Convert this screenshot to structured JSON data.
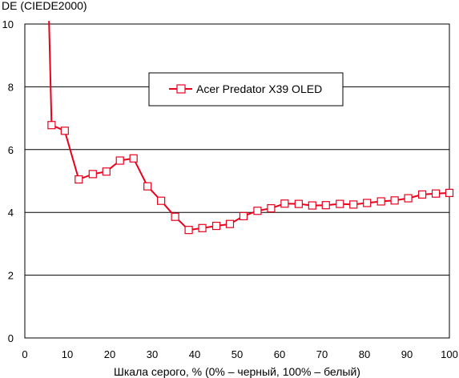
{
  "chart_data": {
    "type": "line",
    "title": "",
    "ylabel": "DE (CIEDE2000)",
    "xlabel": "Шкала серого, % (0% – черный, 100% – белый)",
    "xlim": [
      0,
      100
    ],
    "ylim": [
      0,
      10
    ],
    "x_ticks": [
      "0",
      "10",
      "20",
      "30",
      "40",
      "50",
      "60",
      "70",
      "80",
      "90",
      "100"
    ],
    "y_ticks": [
      "0",
      "2",
      "4",
      "6",
      "8",
      "10"
    ],
    "grid": "horizontal",
    "legend_position": "top-right",
    "series_color": "#e8001c",
    "series": [
      {
        "name": "Acer Predator X39 OLED",
        "points_shown": [
          [
            6.3,
            6.78
          ],
          [
            9.4,
            6.6
          ],
          [
            12.7,
            5.05
          ],
          [
            16.0,
            5.22
          ],
          [
            19.2,
            5.3
          ],
          [
            22.4,
            5.65
          ],
          [
            25.6,
            5.72
          ],
          [
            28.9,
            4.83
          ],
          [
            32.1,
            4.37
          ],
          [
            35.4,
            3.86
          ],
          [
            38.6,
            3.44
          ],
          [
            41.8,
            3.5
          ],
          [
            45.1,
            3.57
          ],
          [
            48.3,
            3.63
          ],
          [
            51.5,
            3.88
          ],
          [
            54.8,
            4.05
          ],
          [
            58.0,
            4.13
          ],
          [
            61.2,
            4.28
          ],
          [
            64.5,
            4.27
          ],
          [
            67.7,
            4.22
          ],
          [
            70.9,
            4.23
          ],
          [
            74.2,
            4.27
          ],
          [
            77.4,
            4.25
          ],
          [
            80.6,
            4.3
          ],
          [
            83.9,
            4.35
          ],
          [
            87.1,
            4.38
          ],
          [
            90.3,
            4.45
          ],
          [
            93.6,
            4.57
          ],
          [
            96.8,
            4.6
          ],
          [
            100.0,
            4.62
          ]
        ],
        "offscale_start": [
          5.7,
          10.1
        ]
      }
    ]
  }
}
